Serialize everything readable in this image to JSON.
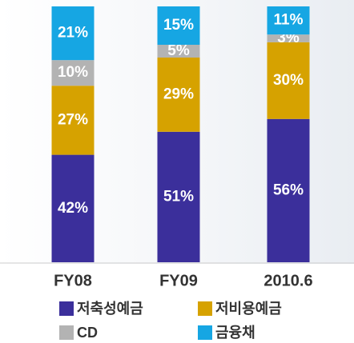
{
  "chart_data": {
    "type": "stacked-bar",
    "categories": [
      "FY08",
      "FY09",
      "2010.6"
    ],
    "series": [
      {
        "name": "저축성예금",
        "color": "#3b2f9b",
        "values": [
          42,
          51,
          56
        ],
        "value_labels": [
          "42%",
          "51%",
          "56%"
        ]
      },
      {
        "name": "저비용예금",
        "color": "#d6a200",
        "values": [
          27,
          29,
          30
        ],
        "value_labels": [
          "27%",
          "29%",
          "30%"
        ]
      },
      {
        "name": "CD",
        "color": "#b3b3b3",
        "values": [
          10,
          5,
          3
        ],
        "value_labels": [
          "10%",
          "5%",
          "3%"
        ]
      },
      {
        "name": "금융채",
        "color": "#16a6e3",
        "values": [
          21,
          15,
          11
        ],
        "value_labels": [
          "21%",
          "15%",
          "11%"
        ]
      }
    ]
  }
}
